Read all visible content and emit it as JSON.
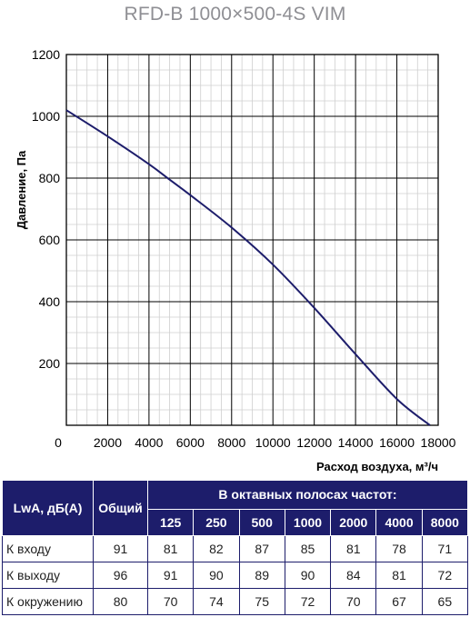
{
  "title": "RFD-B 1000×500-4S VIM",
  "chart_data": {
    "type": "line",
    "xlabel": "Расход воздуха, м³/ч",
    "ylabel": "Давление, Па",
    "xlim": [
      0,
      18000
    ],
    "ylim": [
      0,
      1200
    ],
    "x_ticks": [
      "0",
      "2000",
      "4000",
      "6000",
      "8000",
      "10000",
      "12000",
      "14000",
      "16000",
      "18000"
    ],
    "y_ticks": [
      "200",
      "400",
      "600",
      "800",
      "1000",
      "1200"
    ],
    "grid": true,
    "series": [
      {
        "color": "#1d1d6b",
        "x": [
          0,
          2000,
          4000,
          5000,
          6000,
          8000,
          10000,
          12000,
          14000,
          16000,
          17600
        ],
        "y": [
          1020,
          935,
          845,
          795,
          745,
          640,
          520,
          380,
          230,
          85,
          0
        ]
      }
    ]
  },
  "table": {
    "header_label": "LwA, дБ(A)",
    "header_total": "Общий",
    "header_bands": "В октавных полосах частот:",
    "freqs": [
      "125",
      "250",
      "500",
      "1000",
      "2000",
      "4000",
      "8000"
    ],
    "rows": [
      {
        "label": "К входу",
        "total": "91",
        "values": [
          "81",
          "82",
          "87",
          "85",
          "81",
          "78",
          "71"
        ]
      },
      {
        "label": "К выходу",
        "total": "96",
        "values": [
          "91",
          "90",
          "89",
          "90",
          "84",
          "81",
          "72"
        ]
      },
      {
        "label": "К окружению",
        "total": "80",
        "values": [
          "70",
          "74",
          "75",
          "72",
          "70",
          "67",
          "65"
        ]
      }
    ]
  }
}
